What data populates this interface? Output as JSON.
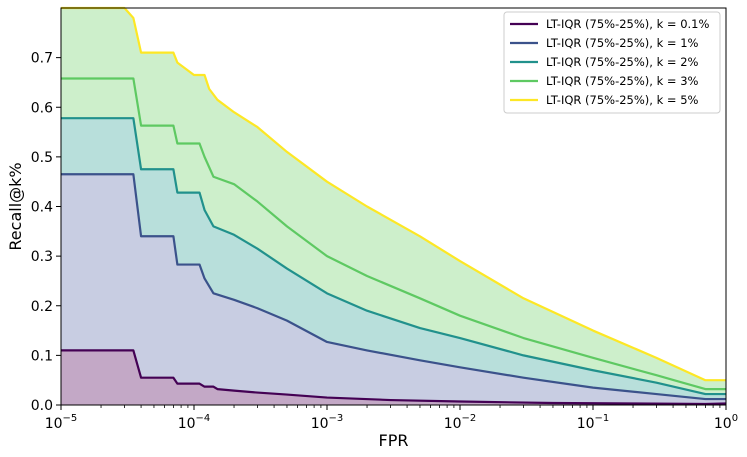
{
  "chart_data": {
    "type": "area",
    "title": "",
    "xlabel": "FPR",
    "ylabel": "Recall@k%",
    "xscale": "log",
    "xlim": [
      1e-05,
      1
    ],
    "ylim": [
      0,
      0.8
    ],
    "grid": false,
    "legend_location": "top-right",
    "x_tick_labels": [
      {
        "base": "10",
        "exp": "−5",
        "value": 1e-05
      },
      {
        "base": "10",
        "exp": "−4",
        "value": 0.0001
      },
      {
        "base": "10",
        "exp": "−3",
        "value": 0.001
      },
      {
        "base": "10",
        "exp": "−2",
        "value": 0.01
      },
      {
        "base": "10",
        "exp": "−1",
        "value": 0.1
      },
      {
        "base": "10",
        "exp": "0",
        "value": 1
      }
    ],
    "y_ticks": [
      0.0,
      0.1,
      0.2,
      0.3,
      0.4,
      0.5,
      0.6,
      0.7
    ],
    "y_tick_labels": [
      "0.0",
      "0.1",
      "0.2",
      "0.3",
      "0.4",
      "0.5",
      "0.6",
      "0.7"
    ],
    "series": [
      {
        "name": "LT-IQR (75%-25%), k = 0.1%",
        "color": "#440154",
        "fill": "#c3a8c6",
        "points": [
          [
            1e-05,
            0.11
          ],
          [
            3.5e-05,
            0.11
          ],
          [
            4e-05,
            0.055
          ],
          [
            7e-05,
            0.055
          ],
          [
            7.5e-05,
            0.043
          ],
          [
            0.00011,
            0.043
          ],
          [
            0.00012,
            0.037
          ],
          [
            0.00014,
            0.037
          ],
          [
            0.00015,
            0.032
          ],
          [
            0.0002,
            0.029
          ],
          [
            0.0003,
            0.025
          ],
          [
            0.0005,
            0.021
          ],
          [
            0.001,
            0.015
          ],
          [
            0.003,
            0.01
          ],
          [
            0.01,
            0.007
          ],
          [
            0.05,
            0.004
          ],
          [
            0.2,
            0.003
          ],
          [
            0.7,
            0.002
          ],
          [
            1.0,
            0.003
          ]
        ]
      },
      {
        "name": "LT-IQR (75%-25%), k = 1%",
        "color": "#3b528b",
        "fill": "#c8cde2",
        "points": [
          [
            1e-05,
            0.465
          ],
          [
            3.5e-05,
            0.465
          ],
          [
            4e-05,
            0.34
          ],
          [
            7e-05,
            0.34
          ],
          [
            7.5e-05,
            0.283
          ],
          [
            0.00011,
            0.283
          ],
          [
            0.00012,
            0.255
          ],
          [
            0.00014,
            0.225
          ],
          [
            0.0002,
            0.212
          ],
          [
            0.0003,
            0.195
          ],
          [
            0.0005,
            0.17
          ],
          [
            0.001,
            0.127
          ],
          [
            0.002,
            0.11
          ],
          [
            0.005,
            0.09
          ],
          [
            0.01,
            0.076
          ],
          [
            0.03,
            0.055
          ],
          [
            0.1,
            0.035
          ],
          [
            0.3,
            0.022
          ],
          [
            0.7,
            0.012
          ],
          [
            1.0,
            0.012
          ]
        ]
      },
      {
        "name": "LT-IQR (75%-25%), k = 2%",
        "color": "#21918c",
        "fill": "#b8dfdb",
        "points": [
          [
            1e-05,
            0.578
          ],
          [
            3.5e-05,
            0.578
          ],
          [
            4e-05,
            0.475
          ],
          [
            7e-05,
            0.475
          ],
          [
            7.5e-05,
            0.428
          ],
          [
            0.00011,
            0.428
          ],
          [
            0.00012,
            0.393
          ],
          [
            0.00014,
            0.36
          ],
          [
            0.0002,
            0.343
          ],
          [
            0.0003,
            0.315
          ],
          [
            0.0005,
            0.275
          ],
          [
            0.001,
            0.225
          ],
          [
            0.002,
            0.19
          ],
          [
            0.005,
            0.155
          ],
          [
            0.01,
            0.135
          ],
          [
            0.03,
            0.1
          ],
          [
            0.1,
            0.07
          ],
          [
            0.3,
            0.045
          ],
          [
            0.7,
            0.022
          ],
          [
            1.0,
            0.022
          ]
        ]
      },
      {
        "name": "LT-IQR (75%-25%), k = 3%",
        "color": "#5ec962",
        "fill": "#cdefcb",
        "points": [
          [
            1e-05,
            0.658
          ],
          [
            3.5e-05,
            0.658
          ],
          [
            4e-05,
            0.563
          ],
          [
            7e-05,
            0.563
          ],
          [
            7.5e-05,
            0.527
          ],
          [
            0.00011,
            0.527
          ],
          [
            0.00012,
            0.5
          ],
          [
            0.00014,
            0.46
          ],
          [
            0.0002,
            0.445
          ],
          [
            0.0003,
            0.41
          ],
          [
            0.0005,
            0.36
          ],
          [
            0.001,
            0.3
          ],
          [
            0.002,
            0.26
          ],
          [
            0.005,
            0.215
          ],
          [
            0.01,
            0.18
          ],
          [
            0.03,
            0.135
          ],
          [
            0.1,
            0.095
          ],
          [
            0.3,
            0.06
          ],
          [
            0.7,
            0.032
          ],
          [
            1.0,
            0.032
          ]
        ]
      },
      {
        "name": "LT-IQR (75%-25%), k = 5%",
        "color": "#fde725",
        "fill": "#cdefcb",
        "points": [
          [
            1e-05,
            0.8
          ],
          [
            3e-05,
            0.8
          ],
          [
            3.5e-05,
            0.78
          ],
          [
            4e-05,
            0.71
          ],
          [
            7e-05,
            0.71
          ],
          [
            7.5e-05,
            0.69
          ],
          [
            0.0001,
            0.665
          ],
          [
            0.00012,
            0.665
          ],
          [
            0.00013,
            0.637
          ],
          [
            0.00015,
            0.615
          ],
          [
            0.0002,
            0.59
          ],
          [
            0.0003,
            0.56
          ],
          [
            0.0005,
            0.51
          ],
          [
            0.001,
            0.45
          ],
          [
            0.002,
            0.4
          ],
          [
            0.005,
            0.34
          ],
          [
            0.01,
            0.29
          ],
          [
            0.03,
            0.215
          ],
          [
            0.1,
            0.15
          ],
          [
            0.3,
            0.095
          ],
          [
            0.7,
            0.05
          ],
          [
            1.0,
            0.05
          ]
        ]
      }
    ]
  }
}
